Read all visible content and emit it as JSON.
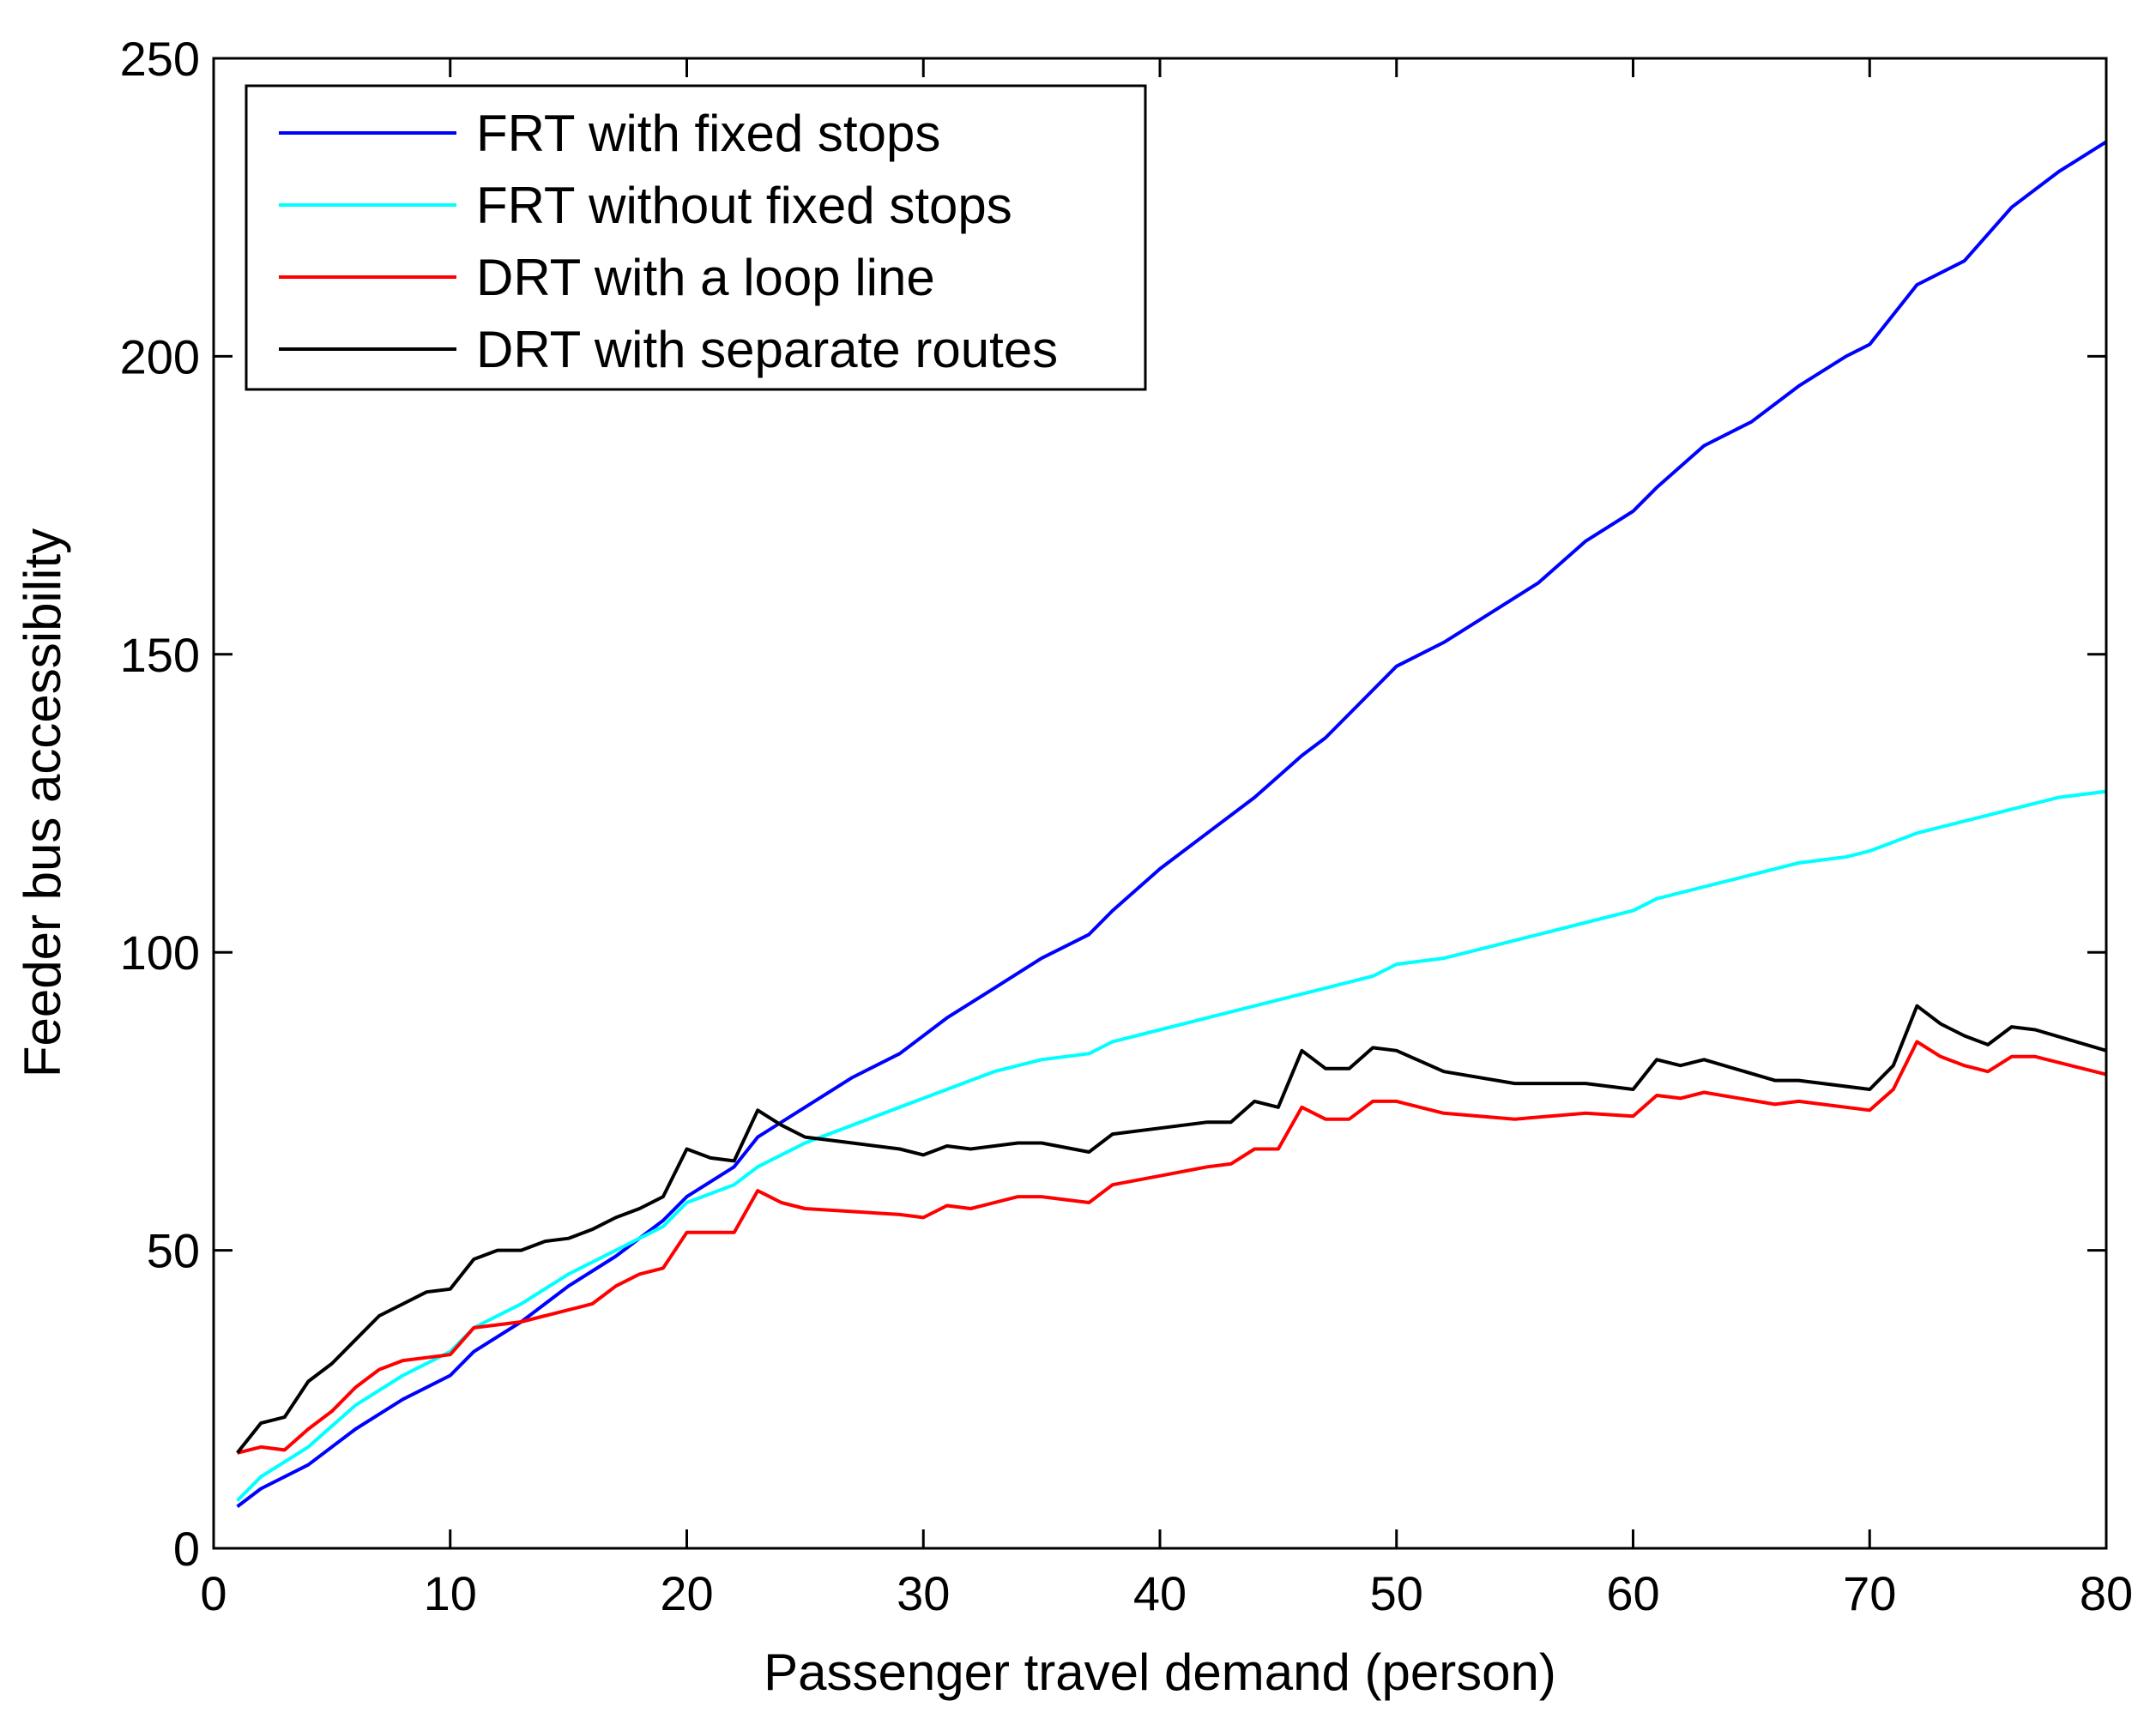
{
  "chart_data": {
    "type": "line",
    "title": "",
    "xlabel": "Passenger travel demand (person)",
    "ylabel": "Feeder bus accessibility",
    "xlim": [
      0,
      80
    ],
    "ylim": [
      0,
      250
    ],
    "xticks": [
      0,
      10,
      20,
      30,
      40,
      50,
      60,
      70,
      80
    ],
    "yticks": [
      0,
      50,
      100,
      150,
      200,
      250
    ],
    "grid": false,
    "legend_position": "top-left",
    "series": [
      {
        "name": "FRT with fixed stops",
        "color": "#0000ff",
        "x": [
          1,
          2,
          4,
          6,
          8,
          10,
          11,
          13,
          15,
          17,
          19,
          20,
          22,
          23,
          25,
          27,
          29,
          31,
          33,
          35,
          37,
          38,
          40,
          42,
          44,
          46,
          47,
          49,
          50,
          52,
          54,
          56,
          58,
          60,
          61,
          63,
          65,
          67,
          69,
          70,
          72,
          74,
          76,
          78,
          80
        ],
        "y": [
          7,
          10,
          14,
          20,
          25,
          29,
          33,
          38,
          44,
          49,
          55,
          59,
          64,
          69,
          74,
          79,
          83,
          89,
          94,
          99,
          103,
          107,
          114,
          120,
          126,
          133,
          136,
          144,
          148,
          152,
          157,
          162,
          169,
          174,
          178,
          185,
          189,
          195,
          200,
          202,
          212,
          216,
          225,
          231,
          236
        ]
      },
      {
        "name": "FRT without fixed stops",
        "color": "#00ffff",
        "x": [
          1,
          2,
          4,
          6,
          8,
          10,
          11,
          13,
          15,
          17,
          19,
          20,
          22,
          23,
          25,
          27,
          29,
          31,
          33,
          35,
          37,
          38,
          40,
          42,
          44,
          46,
          47,
          49,
          50,
          52,
          54,
          56,
          58,
          60,
          61,
          63,
          65,
          67,
          69,
          70,
          72,
          74,
          76,
          78,
          80
        ],
        "y": [
          8,
          12,
          17,
          24,
          29,
          33,
          37,
          41,
          46,
          50,
          54,
          58,
          61,
          64,
          68,
          71,
          74,
          77,
          80,
          82,
          83,
          85,
          87,
          89,
          91,
          93,
          94,
          96,
          98,
          99,
          101,
          103,
          105,
          107,
          109,
          111,
          113,
          115,
          116,
          117,
          120,
          122,
          124,
          126,
          127
        ]
      },
      {
        "name": "DRT with a loop line",
        "color": "#ff0000",
        "x": [
          1,
          2,
          3,
          4,
          5,
          6,
          7,
          8,
          9,
          10,
          11,
          12,
          13,
          14,
          15,
          16,
          17,
          18,
          19,
          20,
          21,
          22,
          23,
          24,
          25,
          27,
          29,
          30,
          31,
          32,
          34,
          35,
          37,
          38,
          40,
          42,
          43,
          44,
          45,
          46,
          47,
          48,
          49,
          50,
          52,
          55,
          58,
          60,
          61,
          62,
          63,
          66,
          67,
          70,
          71,
          72,
          73,
          74,
          75,
          76,
          77,
          80
        ],
        "y": [
          16,
          17,
          16.5,
          20,
          23,
          27,
          30,
          31.5,
          32,
          32.5,
          37,
          37.5,
          38,
          39,
          40,
          41,
          44,
          46,
          47,
          53,
          53,
          53,
          60,
          58,
          57,
          56.5,
          56,
          55.5,
          57.5,
          57,
          59,
          59,
          58,
          61,
          62.5,
          64,
          64.5,
          67,
          67,
          74,
          72,
          72,
          75,
          75,
          73,
          72,
          73,
          72.5,
          76,
          75.5,
          76.5,
          74.5,
          75,
          73.5,
          77,
          85,
          82.5,
          81,
          80,
          82.5,
          82.5,
          79.5
        ]
      },
      {
        "name": "DRT with separate routes",
        "color": "#000000",
        "x": [
          1,
          2,
          3,
          4,
          5,
          6,
          7,
          8,
          9,
          10,
          11,
          12,
          13,
          14,
          15,
          16,
          17,
          18,
          19,
          20,
          21,
          22,
          23,
          24,
          25,
          27,
          29,
          30,
          31,
          32,
          34,
          35,
          37,
          38,
          40,
          42,
          43,
          44,
          45,
          46,
          47,
          48,
          49,
          50,
          52,
          55,
          58,
          60,
          61,
          62,
          63,
          66,
          67,
          70,
          71,
          72,
          73,
          74,
          75,
          76,
          77,
          80
        ],
        "y": [
          16,
          21,
          22,
          28,
          31,
          35,
          39,
          41,
          43,
          43.5,
          48.5,
          50,
          50,
          51.5,
          52,
          53.5,
          55.5,
          57,
          59,
          67,
          65.5,
          65,
          73.5,
          71,
          69,
          68,
          67,
          66,
          67.5,
          67,
          68,
          68,
          66.5,
          69.5,
          70.5,
          71.5,
          71.5,
          75,
          74,
          83.5,
          80.5,
          80.5,
          84,
          83.5,
          80,
          78,
          78,
          77,
          82,
          81,
          82,
          78.5,
          78.5,
          77,
          81,
          91,
          88,
          86,
          84.5,
          87.5,
          87,
          83.5
        ]
      }
    ]
  }
}
